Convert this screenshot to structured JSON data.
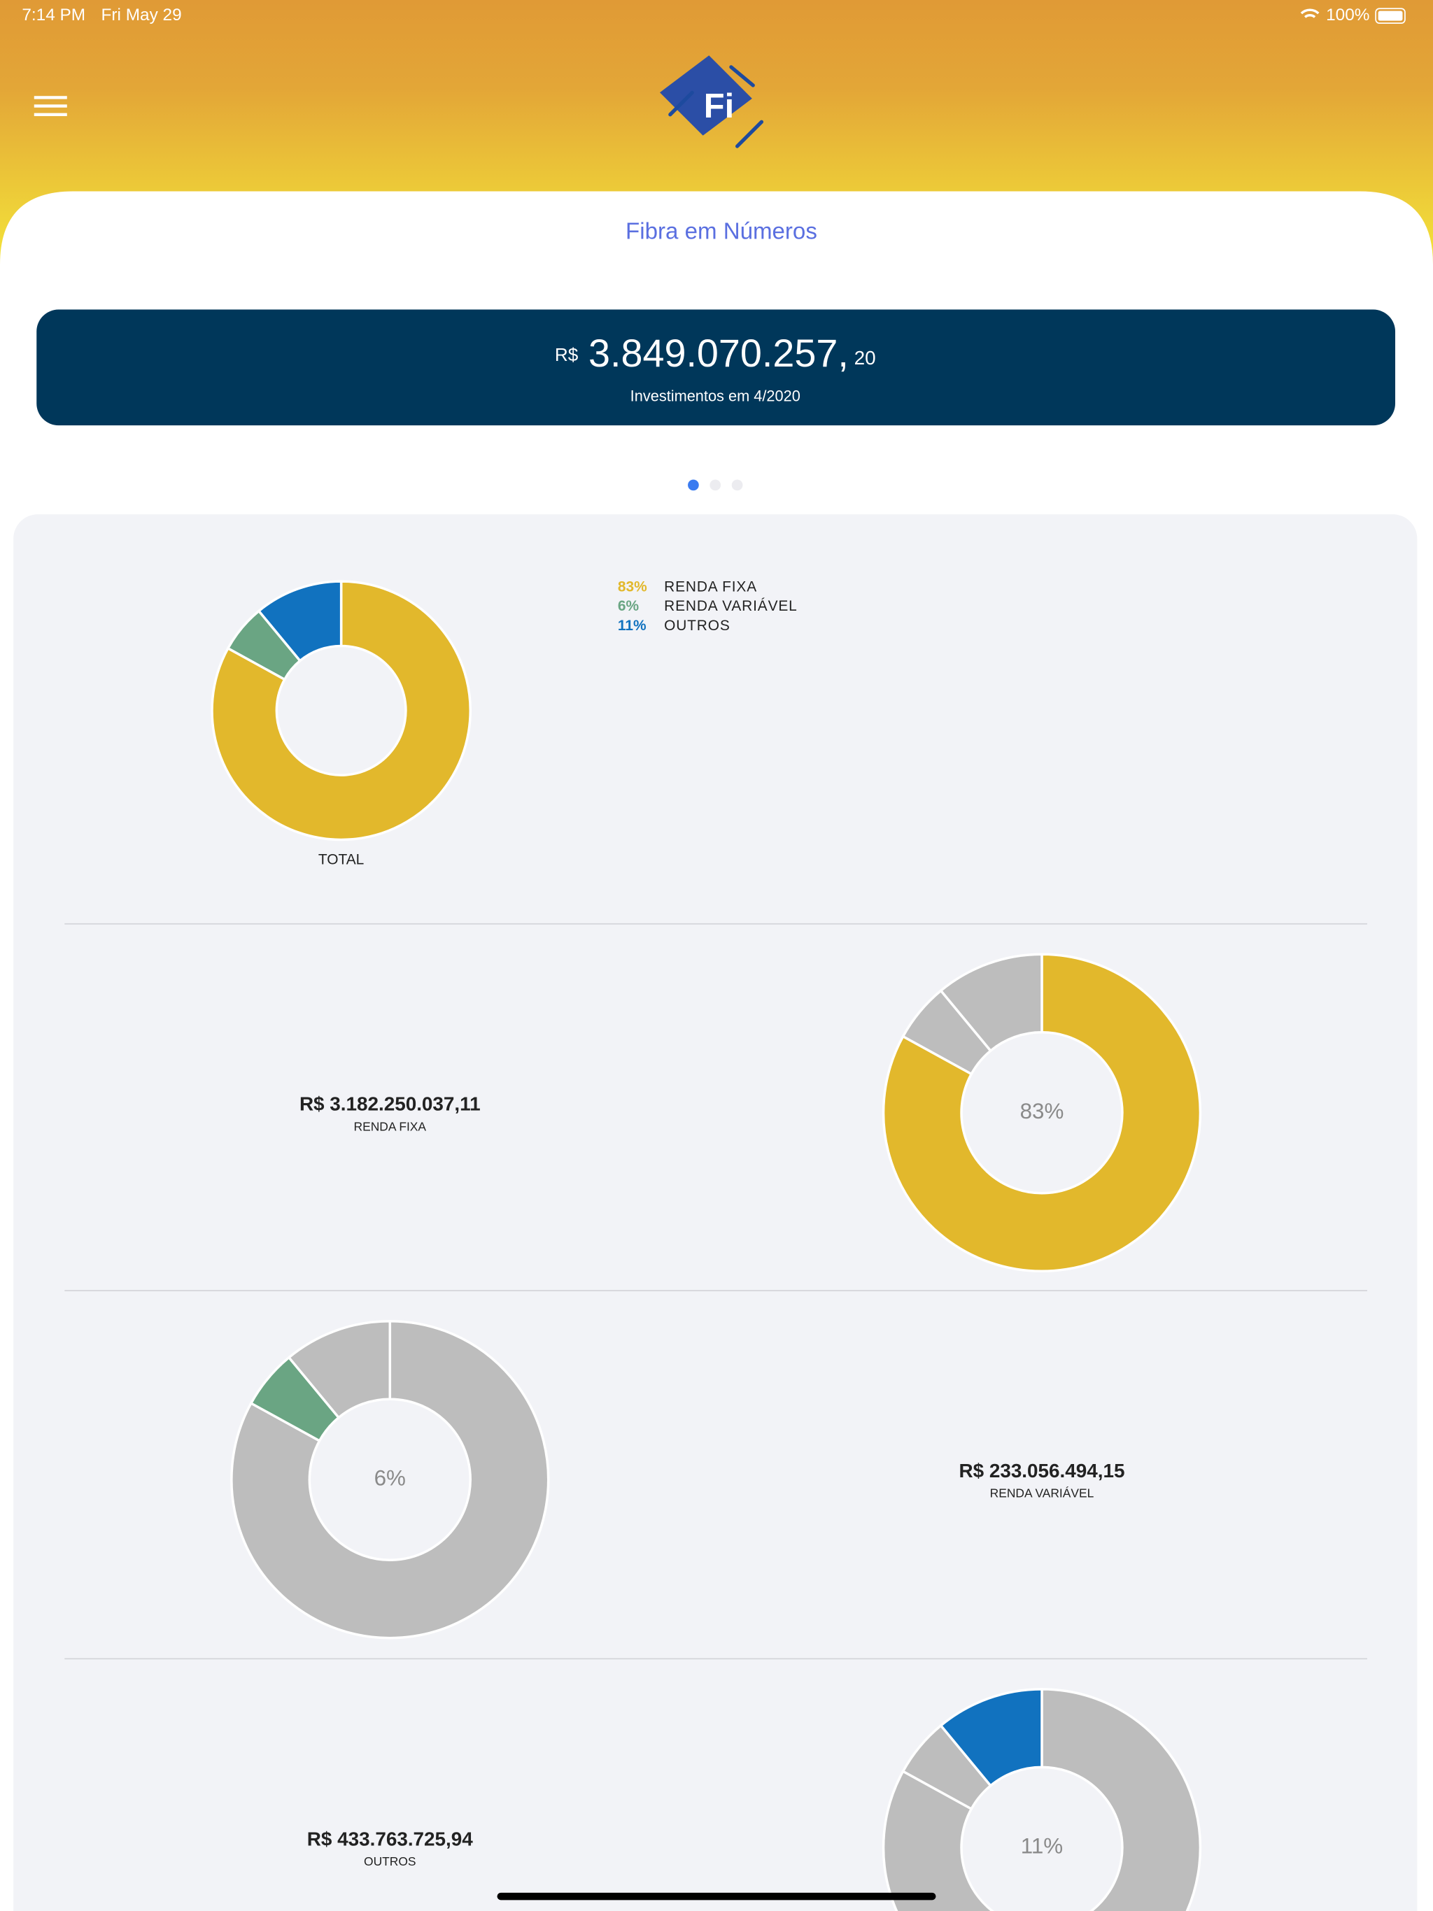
{
  "status_bar": {
    "time": "7:14 PM",
    "date": "Fri May 29",
    "battery": "100%"
  },
  "header": {
    "title": "Fibra em Números"
  },
  "summary": {
    "currency": "R$",
    "amount": "3.849.070.257,",
    "cents": "20",
    "caption": "Investimentos em 4/2020"
  },
  "chart_data": {
    "type": "pie",
    "donut": true,
    "label": "TOTAL",
    "categories": [
      "RENDA FIXA",
      "RENDA VARIÁVEL",
      "OUTROS"
    ],
    "values": [
      83,
      6,
      11
    ],
    "value_labels": [
      "83%",
      "6%",
      "11%"
    ],
    "colors": [
      "#e2b82c",
      "#6aa583",
      "#1172bf"
    ],
    "inactive_color": "#bdbdbd"
  },
  "sections": [
    {
      "amount": "R$ 3.182.250.037,11"
    },
    {
      "amount": "R$ 233.056.494,15"
    },
    {
      "amount": "R$ 433.763.725,94"
    }
  ]
}
